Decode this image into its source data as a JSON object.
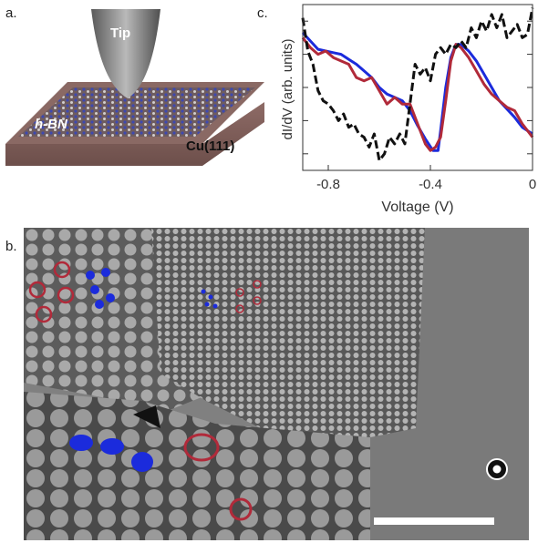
{
  "panels": {
    "a": "a.",
    "b": "b.",
    "c": "c."
  },
  "schematic": {
    "tip": "Tip",
    "hbn": "h-BN",
    "substrate": "Cu(111)"
  },
  "colors": {
    "blue": "#1b2bdc",
    "red": "#b12a3a",
    "black": "#111111"
  },
  "chart_data": {
    "type": "line",
    "xlabel": "Voltage (V)",
    "ylabel": "dI/dV (arb. units)",
    "xlim": [
      -0.9,
      0.0
    ],
    "xticks": [
      "-0.8",
      "-0.4",
      "0"
    ],
    "xtick_values": [
      -0.8,
      -0.4,
      0.0
    ],
    "series": [
      {
        "style": "solid",
        "color": "#1b2bdc",
        "x": [
          -0.9,
          -0.87,
          -0.84,
          -0.81,
          -0.78,
          -0.75,
          -0.72,
          -0.69,
          -0.66,
          -0.63,
          -0.6,
          -0.57,
          -0.54,
          -0.51,
          -0.48,
          -0.45,
          -0.42,
          -0.39,
          -0.37,
          -0.36,
          -0.34,
          -0.32,
          -0.3,
          -0.28,
          -0.25,
          -0.22,
          -0.19,
          -0.16,
          -0.13,
          -0.1,
          -0.07,
          -0.04,
          0.0
        ],
        "y": [
          0.83,
          0.78,
          0.73,
          0.72,
          0.71,
          0.7,
          0.67,
          0.64,
          0.6,
          0.56,
          0.5,
          0.46,
          0.44,
          0.42,
          0.36,
          0.27,
          0.19,
          0.12,
          0.12,
          0.24,
          0.5,
          0.68,
          0.76,
          0.76,
          0.72,
          0.66,
          0.58,
          0.5,
          0.42,
          0.37,
          0.32,
          0.26,
          0.22
        ]
      },
      {
        "style": "solid",
        "color": "#b12a3a",
        "x": [
          -0.9,
          -0.87,
          -0.84,
          -0.81,
          -0.78,
          -0.75,
          -0.72,
          -0.69,
          -0.66,
          -0.63,
          -0.6,
          -0.57,
          -0.54,
          -0.51,
          -0.48,
          -0.45,
          -0.42,
          -0.4,
          -0.38,
          -0.36,
          -0.34,
          -0.32,
          -0.3,
          -0.28,
          -0.25,
          -0.22,
          -0.19,
          -0.16,
          -0.13,
          -0.1,
          -0.07,
          -0.04,
          0.0
        ],
        "y": [
          0.8,
          0.74,
          0.7,
          0.72,
          0.68,
          0.66,
          0.64,
          0.56,
          0.54,
          0.56,
          0.48,
          0.4,
          0.44,
          0.4,
          0.4,
          0.28,
          0.16,
          0.12,
          0.14,
          0.2,
          0.42,
          0.66,
          0.76,
          0.74,
          0.68,
          0.6,
          0.52,
          0.46,
          0.42,
          0.38,
          0.36,
          0.28,
          0.2
        ]
      },
      {
        "style": "dashed",
        "color": "#111111",
        "x": [
          -0.9,
          -0.88,
          -0.86,
          -0.84,
          -0.82,
          -0.8,
          -0.78,
          -0.76,
          -0.74,
          -0.72,
          -0.7,
          -0.68,
          -0.66,
          -0.64,
          -0.62,
          -0.6,
          -0.58,
          -0.56,
          -0.54,
          -0.52,
          -0.5,
          -0.48,
          -0.46,
          -0.44,
          -0.42,
          -0.4,
          -0.38,
          -0.36,
          -0.34,
          -0.32,
          -0.3,
          -0.28,
          -0.26,
          -0.24,
          -0.22,
          -0.2,
          -0.18,
          -0.16,
          -0.14,
          -0.12,
          -0.1,
          -0.08,
          -0.06,
          -0.04,
          -0.02,
          0.0
        ],
        "y": [
          0.92,
          0.72,
          0.64,
          0.48,
          0.42,
          0.4,
          0.36,
          0.3,
          0.34,
          0.26,
          0.28,
          0.22,
          0.2,
          0.14,
          0.22,
          0.06,
          0.1,
          0.2,
          0.16,
          0.22,
          0.16,
          0.4,
          0.64,
          0.58,
          0.62,
          0.54,
          0.7,
          0.74,
          0.7,
          0.76,
          0.74,
          0.78,
          0.74,
          0.86,
          0.8,
          0.9,
          0.84,
          0.94,
          0.86,
          0.94,
          0.8,
          0.84,
          0.88,
          0.8,
          0.82,
          0.98
        ]
      }
    ]
  }
}
